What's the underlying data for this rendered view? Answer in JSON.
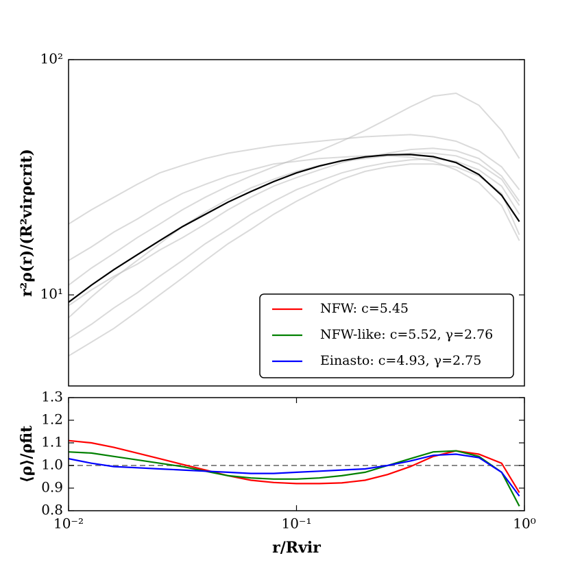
{
  "chart_data": [
    {
      "type": "line",
      "ylabel": "r²ρ(r)/(R²virρcrit)",
      "xscale": "log",
      "yscale": "log",
      "xlim": [
        0.01,
        1
      ],
      "ylim": [
        4.1,
        100
      ],
      "yticks": [
        {
          "value": 10,
          "label": "10¹"
        },
        {
          "value": 100,
          "label": "10²"
        }
      ],
      "legend": "lower right",
      "x": [
        0.01,
        0.0126,
        0.0158,
        0.02,
        0.0251,
        0.0316,
        0.0398,
        0.0501,
        0.0631,
        0.0794,
        0.1,
        0.126,
        0.158,
        0.2,
        0.251,
        0.316,
        0.398,
        0.501,
        0.631,
        0.794,
        0.95
      ],
      "series": [
        {
          "color": "#bbbbbb",
          "values": [
            20,
            23,
            26,
            29.5,
            33,
            35.5,
            38,
            40,
            41.5,
            43,
            44,
            45,
            46,
            47,
            47.5,
            48,
            47,
            45,
            41,
            35,
            28
          ]
        },
        {
          "color": "#bbbbbb",
          "values": [
            6.5,
            7.5,
            8.8,
            10.2,
            12,
            14,
            16.5,
            19,
            22,
            25,
            28,
            30.5,
            33,
            35,
            36.5,
            37.5,
            38,
            37,
            34,
            29,
            22
          ]
        },
        {
          "color": "#bbbbbb",
          "values": [
            8,
            9.8,
            11.8,
            14,
            16.5,
            19.5,
            22.5,
            25.5,
            28.5,
            31,
            33.5,
            35.5,
            37,
            38,
            39,
            40,
            40,
            39,
            36,
            31,
            24
          ]
        },
        {
          "color": "#bbbbbb",
          "values": [
            11,
            13,
            15,
            17.5,
            20,
            23,
            26,
            29,
            32,
            35,
            38,
            41,
            45,
            50,
            56,
            63,
            70,
            72,
            64,
            50,
            38
          ]
        },
        {
          "color": "#bbbbbb",
          "values": [
            5.5,
            6.3,
            7.2,
            8.5,
            10,
            11.8,
            14,
            16.5,
            19,
            22,
            25,
            28,
            31,
            33.5,
            35,
            36,
            36,
            35,
            32,
            27,
            18
          ]
        },
        {
          "color": "#bbbbbb",
          "values": [
            14,
            16,
            18.5,
            21,
            24,
            27,
            29.5,
            32,
            34,
            36,
            37,
            38,
            38.5,
            39,
            39,
            38.5,
            37,
            34,
            30,
            24,
            17
          ]
        },
        {
          "color": "#bbbbbb",
          "values": [
            9,
            10.5,
            12,
            13.5,
            15.5,
            17.5,
            20,
            23,
            26,
            29,
            31.5,
            34,
            36.5,
            38.5,
            40,
            41.5,
            42,
            41,
            38,
            32,
            25
          ]
        },
        {
          "color": "#000000",
          "values": [
            9.3,
            11.0,
            12.8,
            14.8,
            17.0,
            19.5,
            22.0,
            24.8,
            27.5,
            30.3,
            33.0,
            35.3,
            37.2,
            38.6,
            39.4,
            39.5,
            38.7,
            36.5,
            32.5,
            26.5,
            20.5
          ]
        }
      ]
    },
    {
      "type": "line",
      "xlabel": "r/Rvir",
      "ylabel": "⟨ρ⟩/ρfit",
      "xscale": "log",
      "xlim": [
        0.01,
        1
      ],
      "ylim": [
        0.8,
        1.3
      ],
      "xticks": [
        {
          "value": 0.01,
          "label": "10⁻²"
        },
        {
          "value": 0.1,
          "label": "10⁻¹"
        },
        {
          "value": 1,
          "label": "10⁰"
        }
      ],
      "yticks": [
        0.8,
        0.9,
        {
          "value": 1,
          "label": "1.0"
        },
        1.1,
        1.2,
        1.3
      ],
      "hline": 1,
      "x": [
        0.01,
        0.0126,
        0.0158,
        0.02,
        0.0251,
        0.0316,
        0.0398,
        0.0501,
        0.0631,
        0.0794,
        0.1,
        0.126,
        0.158,
        0.2,
        0.251,
        0.316,
        0.398,
        0.501,
        0.631,
        0.794,
        0.95
      ],
      "series": [
        {
          "name": "NFW: c=5.45",
          "color": "#ff0000",
          "values": [
            1.11,
            1.1,
            1.08,
            1.055,
            1.03,
            1.005,
            0.98,
            0.955,
            0.935,
            0.925,
            0.92,
            0.92,
            0.923,
            0.935,
            0.96,
            0.995,
            1.04,
            1.065,
            1.05,
            1.01,
            0.88
          ]
        },
        {
          "name": "NFW-like: c=5.52, γ=2.76",
          "color": "#008000",
          "values": [
            1.06,
            1.055,
            1.04,
            1.025,
            1.01,
            0.995,
            0.975,
            0.955,
            0.945,
            0.94,
            0.94,
            0.945,
            0.955,
            0.97,
            1.0,
            1.03,
            1.06,
            1.065,
            1.04,
            0.97,
            0.82
          ]
        },
        {
          "name": "Einasto: c=4.93, γ=2.75",
          "color": "#0000ff",
          "values": [
            1.03,
            1.01,
            0.995,
            0.99,
            0.985,
            0.98,
            0.975,
            0.97,
            0.965,
            0.965,
            0.97,
            0.975,
            0.98,
            0.985,
            1.0,
            1.02,
            1.045,
            1.05,
            1.035,
            0.97,
            0.865
          ]
        }
      ]
    }
  ]
}
